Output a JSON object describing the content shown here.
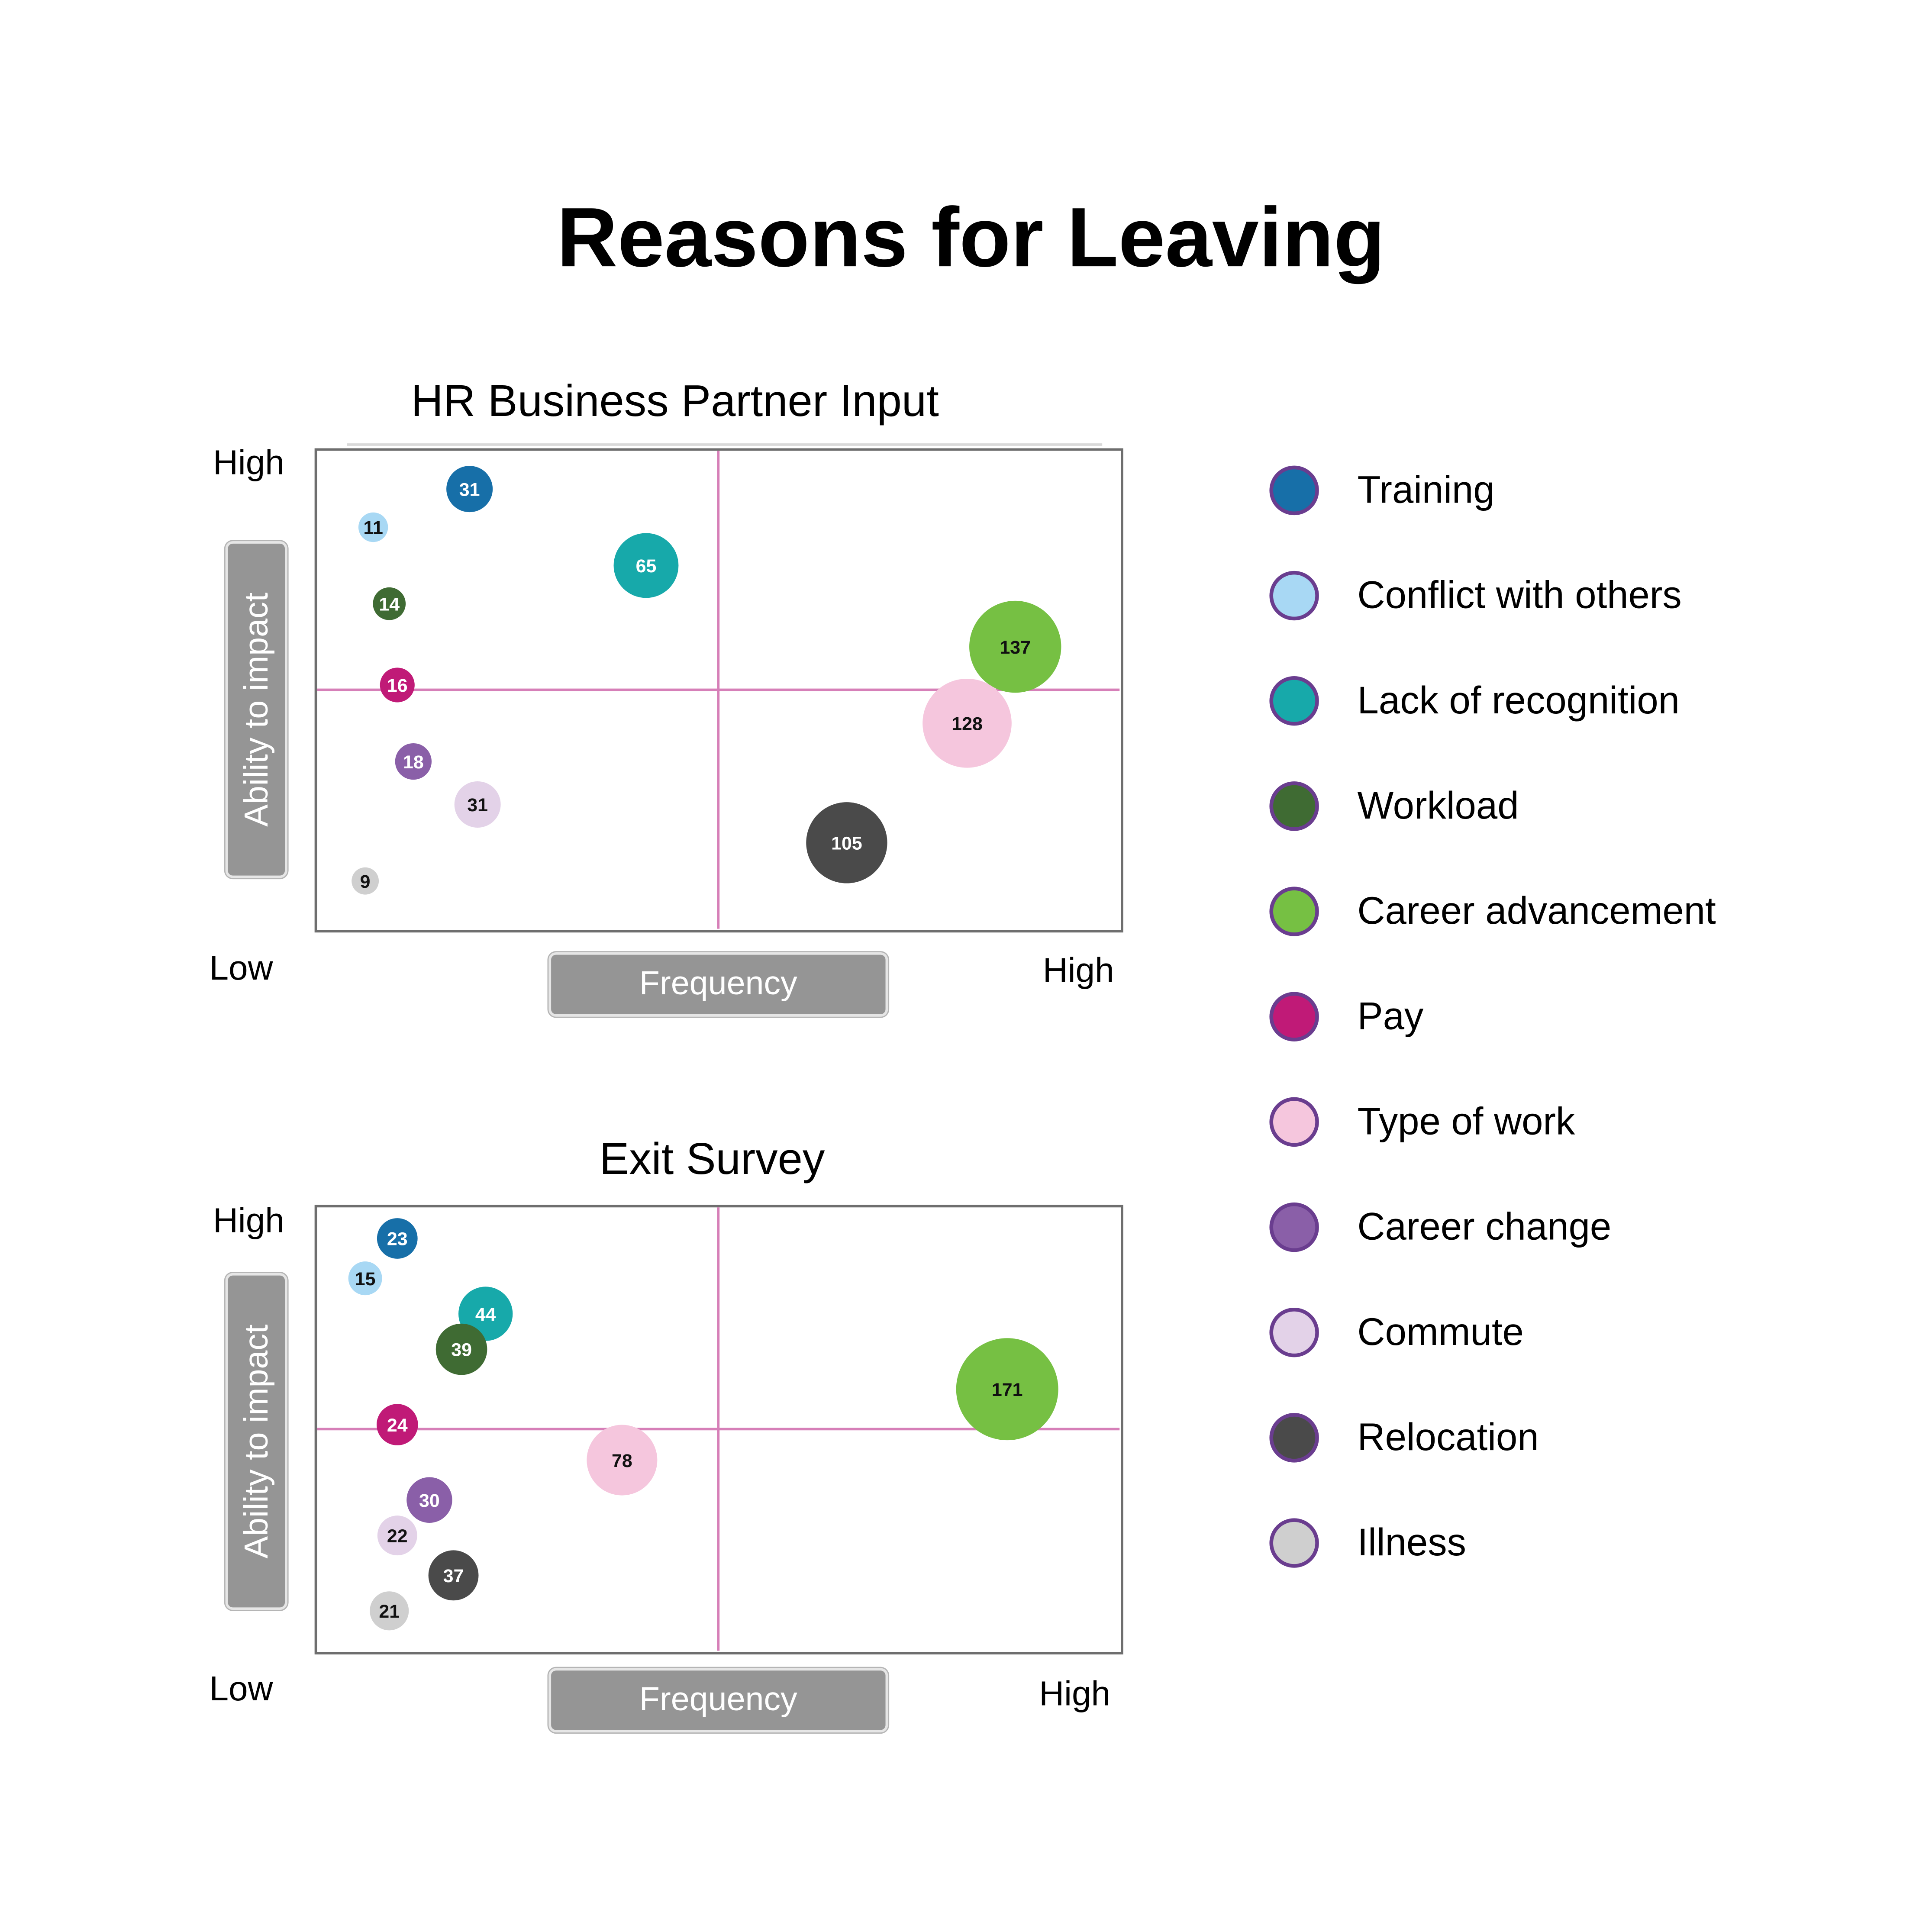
{
  "title": "Reasons for Leaving",
  "categories": [
    {
      "name": "Training",
      "color": "#176fa8"
    },
    {
      "name": "Conflict with others",
      "color": "#a8d8f4"
    },
    {
      "name": "Lack of recognition",
      "color": "#17a9aa"
    },
    {
      "name": "Workload",
      "color": "#3f6b33"
    },
    {
      "name": "Career advancement",
      "color": "#76c043"
    },
    {
      "name": "Pay",
      "color": "#c01a77"
    },
    {
      "name": "Type of work",
      "color": "#f5c6dd"
    },
    {
      "name": "Career change",
      "color": "#8a5fa8"
    },
    {
      "name": "Commute",
      "color": "#e3d2e8"
    },
    {
      "name": "Relocation",
      "color": "#4a4a4a"
    },
    {
      "name": "Illness",
      "color": "#cfcfcf"
    }
  ],
  "chart_data": [
    {
      "type": "scatter",
      "title": "HR Business Partner Input",
      "xlabel": "Frequency",
      "ylabel": "Ability to impact",
      "corner_labels": {
        "y_high": "High",
        "low": "Low",
        "x_high": "High"
      },
      "xlim": [
        0,
        1
      ],
      "ylim": [
        0,
        1
      ],
      "quadrant_lines": {
        "x": 0.5,
        "y": 0.5,
        "color": "#d67fb8"
      },
      "points": [
        {
          "category": "Training",
          "x": 0.19,
          "y": 0.92,
          "size": 31
        },
        {
          "category": "Conflict with others",
          "x": 0.07,
          "y": 0.84,
          "size": 11
        },
        {
          "category": "Lack of recognition",
          "x": 0.41,
          "y": 0.76,
          "size": 65
        },
        {
          "category": "Workload",
          "x": 0.09,
          "y": 0.68,
          "size": 14
        },
        {
          "category": "Career advancement",
          "x": 0.87,
          "y": 0.59,
          "size": 137
        },
        {
          "category": "Pay",
          "x": 0.1,
          "y": 0.51,
          "size": 16
        },
        {
          "category": "Type of work",
          "x": 0.81,
          "y": 0.43,
          "size": 128
        },
        {
          "category": "Career change",
          "x": 0.12,
          "y": 0.35,
          "size": 18
        },
        {
          "category": "Commute",
          "x": 0.2,
          "y": 0.26,
          "size": 31
        },
        {
          "category": "Relocation",
          "x": 0.66,
          "y": 0.18,
          "size": 105
        },
        {
          "category": "Illness",
          "x": 0.06,
          "y": 0.1,
          "size": 9
        }
      ]
    },
    {
      "type": "scatter",
      "title": "Exit Survey",
      "xlabel": "Frequency",
      "ylabel": "Ability to impact",
      "corner_labels": {
        "y_high": "High",
        "low": "Low",
        "x_high": "High"
      },
      "xlim": [
        0,
        1
      ],
      "ylim": [
        0,
        1
      ],
      "quadrant_lines": {
        "x": 0.5,
        "y": 0.5,
        "color": "#d67fb8"
      },
      "points": [
        {
          "category": "Training",
          "x": 0.1,
          "y": 0.93,
          "size": 23
        },
        {
          "category": "Conflict with others",
          "x": 0.06,
          "y": 0.84,
          "size": 15
        },
        {
          "category": "Lack of recognition",
          "x": 0.21,
          "y": 0.76,
          "size": 44
        },
        {
          "category": "Workload",
          "x": 0.18,
          "y": 0.68,
          "size": 39
        },
        {
          "category": "Career advancement",
          "x": 0.86,
          "y": 0.59,
          "size": 171
        },
        {
          "category": "Pay",
          "x": 0.1,
          "y": 0.51,
          "size": 24
        },
        {
          "category": "Type of work",
          "x": 0.38,
          "y": 0.43,
          "size": 78
        },
        {
          "category": "Career change",
          "x": 0.14,
          "y": 0.34,
          "size": 30
        },
        {
          "category": "Commute",
          "x": 0.1,
          "y": 0.26,
          "size": 22
        },
        {
          "category": "Relocation",
          "x": 0.17,
          "y": 0.17,
          "size": 37
        },
        {
          "category": "Illness",
          "x": 0.09,
          "y": 0.09,
          "size": 21
        }
      ]
    }
  ]
}
